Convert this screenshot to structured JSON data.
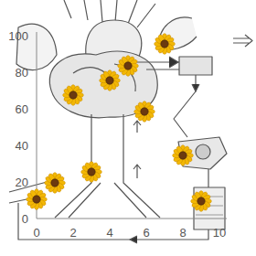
{
  "chart_data": {
    "type": "scatter",
    "x": [
      7,
      5,
      4,
      2,
      5.9,
      8,
      3,
      1,
      0,
      9
    ],
    "values": [
      95.5,
      83.5,
      75.5,
      67.5,
      58.5,
      34.5,
      25.5,
      19.5,
      10.5,
      9.5
    ],
    "marker": "sunflower",
    "color": "#f2b705",
    "xlim": [
      0,
      10.4
    ],
    "ylim": [
      0,
      102
    ],
    "xticks": [
      0,
      2,
      4,
      6,
      8,
      10
    ],
    "yticks": [
      0,
      20,
      40,
      60,
      80,
      100
    ]
  }
}
